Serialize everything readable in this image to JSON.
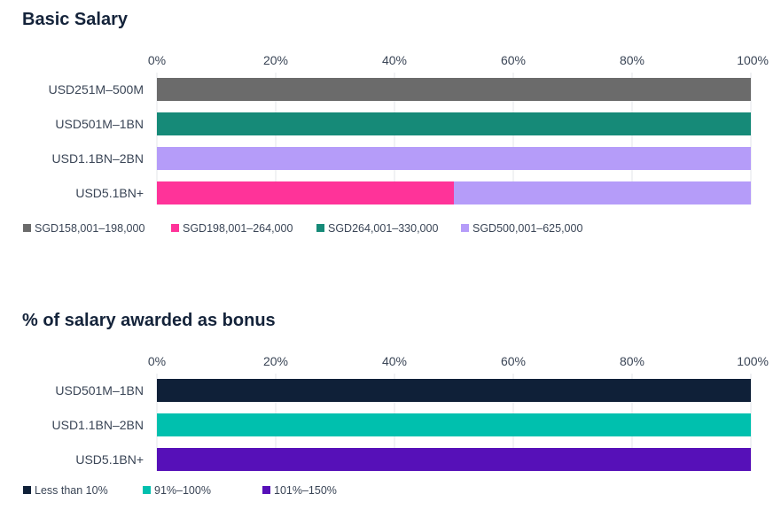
{
  "chart_data": [
    {
      "type": "bar",
      "orientation": "horizontal",
      "stacked": true,
      "title": "Basic Salary",
      "categories": [
        "USD251M–500M",
        "USD501M–1BN",
        "USD1.1BN–2BN",
        "USD5.1BN+"
      ],
      "xlim": [
        0,
        100
      ],
      "x_ticks": [
        "0%",
        "20%",
        "40%",
        "60%",
        "80%",
        "100%"
      ],
      "grid": true,
      "legend_position": "bottom-left",
      "series": [
        {
          "name": "SGD158,001–198,000",
          "color": "#6b6b6b",
          "values": [
            100,
            0,
            0,
            0
          ]
        },
        {
          "name": "SGD198,001–264,000",
          "color": "#ff3399",
          "values": [
            0,
            0,
            0,
            50
          ]
        },
        {
          "name": "SGD264,001–330,000",
          "color": "#168a78",
          "values": [
            0,
            100,
            0,
            0
          ]
        },
        {
          "name": "SGD500,001–625,000",
          "color": "#b59cf9",
          "values": [
            0,
            0,
            100,
            50
          ]
        }
      ]
    },
    {
      "type": "bar",
      "orientation": "horizontal",
      "stacked": true,
      "title": "% of salary awarded as bonus",
      "categories": [
        "USD501M–1BN",
        "USD1.1BN–2BN",
        "USD5.1BN+"
      ],
      "xlim": [
        0,
        100
      ],
      "x_ticks": [
        "0%",
        "20%",
        "40%",
        "60%",
        "80%",
        "100%"
      ],
      "grid": true,
      "legend_position": "bottom-left",
      "series": [
        {
          "name": "Less than 10%",
          "color": "#0f2038",
          "values": [
            100,
            0,
            0
          ]
        },
        {
          "name": "91%–100%",
          "color": "#00c0ae",
          "values": [
            0,
            100,
            0
          ]
        },
        {
          "name": "101%–150%",
          "color": "#5610b8",
          "values": [
            0,
            0,
            100
          ]
        }
      ]
    }
  ]
}
